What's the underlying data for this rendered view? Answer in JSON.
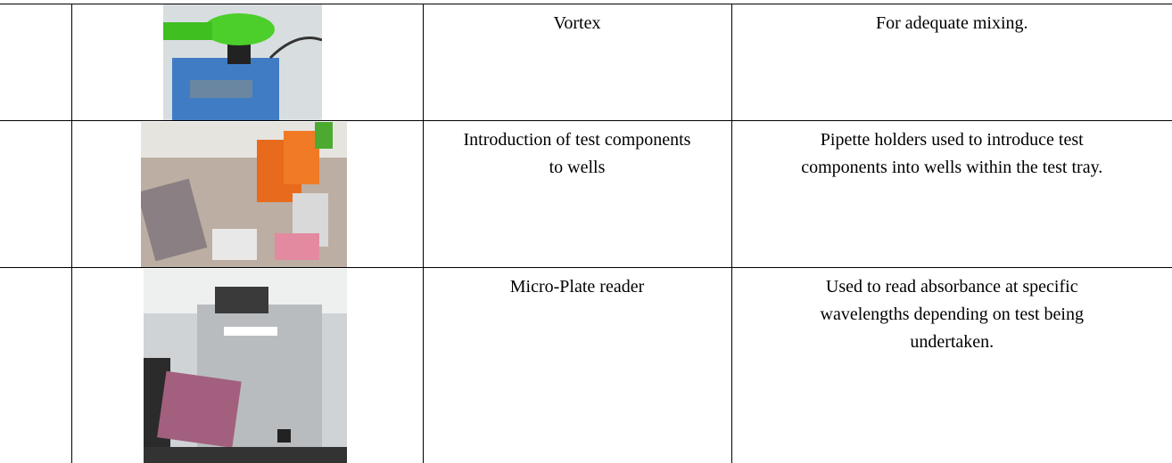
{
  "table": {
    "rows": [
      [
        "Vortex",
        "For adequate mixing."
      ],
      [
        "Introduction of test components to wells",
        "Pipette holders used to introduce test components into wells within the test tray."
      ],
      [
        "Micro-Plate reader",
        "Used to read absorbance at specific wavelengths depending on test being undertaken."
      ]
    ]
  }
}
